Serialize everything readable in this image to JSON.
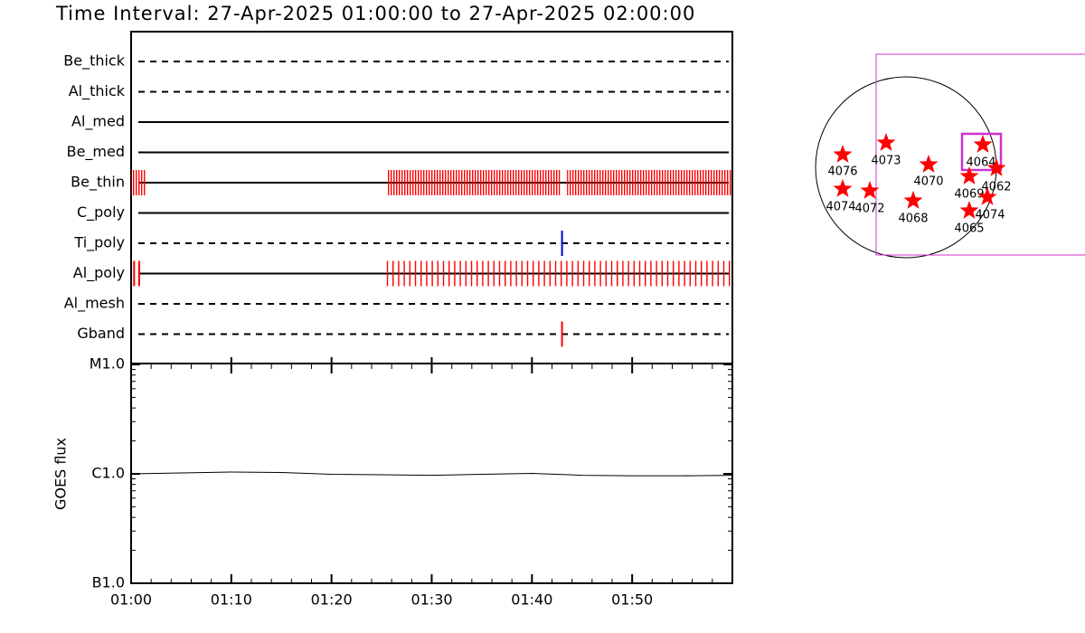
{
  "chart_data": [
    {
      "type": "timeline",
      "title": "Time Interval: 27-Apr-2025 01:00:00 to 27-Apr-2025 02:00:00",
      "xlim": [
        0,
        60
      ],
      "filters": [
        {
          "name": "Be_thick",
          "style": "dashed"
        },
        {
          "name": "Al_thick",
          "style": "dashed"
        },
        {
          "name": "Al_med",
          "style": "solid"
        },
        {
          "name": "Be_med",
          "style": "solid"
        },
        {
          "name": "Be_thin",
          "style": "solid",
          "color": "#ff0000",
          "intervals": [
            [
              0,
              1.5
            ],
            [
              25.5,
              42.8
            ],
            [
              43.5,
              60
            ]
          ]
        },
        {
          "name": "C_poly",
          "style": "solid"
        },
        {
          "name": "Ti_poly",
          "style": "dashed",
          "color": "#0000cc",
          "times": [
            43.0
          ]
        },
        {
          "name": "Al_poly",
          "style": "solid",
          "color": "#ff0000",
          "times": [
            0.3,
            0.8
          ],
          "intervals": [
            [
              25.5,
              60
            ]
          ]
        },
        {
          "name": "Al_mesh",
          "style": "dashed"
        },
        {
          "name": "Gband",
          "style": "dashed",
          "color": "#ff0000",
          "times": [
            43.0
          ]
        }
      ]
    },
    {
      "type": "line",
      "ylabel": "GOES flux",
      "log_scale": true,
      "xlim": [
        0,
        60
      ],
      "xticks": [
        {
          "value": 0,
          "label": "01:00"
        },
        {
          "value": 10,
          "label": "01:10"
        },
        {
          "value": 20,
          "label": "01:20"
        },
        {
          "value": 30,
          "label": "01:30"
        },
        {
          "value": 40,
          "label": "01:40"
        },
        {
          "value": 50,
          "label": "01:50"
        }
      ],
      "ylim": [
        1e-07,
        1e-05
      ],
      "yticks": [
        {
          "value": 1e-07,
          "label": "B1.0"
        },
        {
          "value": 1e-06,
          "label": "C1.0"
        },
        {
          "value": 1e-05,
          "label": "M1.0"
        }
      ],
      "color": "#000000",
      "x": [
        0,
        5,
        10,
        15,
        20,
        25,
        30,
        35,
        40,
        45,
        50,
        55,
        60
      ],
      "values": [
        1e-06,
        1.02e-06,
        1.04e-06,
        1.03e-06,
        9.9e-07,
        9.8e-07,
        9.7e-07,
        9.9e-07,
        1.01e-06,
        9.7e-07,
        9.6e-07,
        9.6e-07,
        9.7e-07
      ]
    }
  ],
  "map": {
    "regions": [
      "4076",
      "4073",
      "4070",
      "4064",
      "4062",
      "4069",
      "4074",
      "4065",
      "4068",
      "4072",
      "4074"
    ]
  }
}
